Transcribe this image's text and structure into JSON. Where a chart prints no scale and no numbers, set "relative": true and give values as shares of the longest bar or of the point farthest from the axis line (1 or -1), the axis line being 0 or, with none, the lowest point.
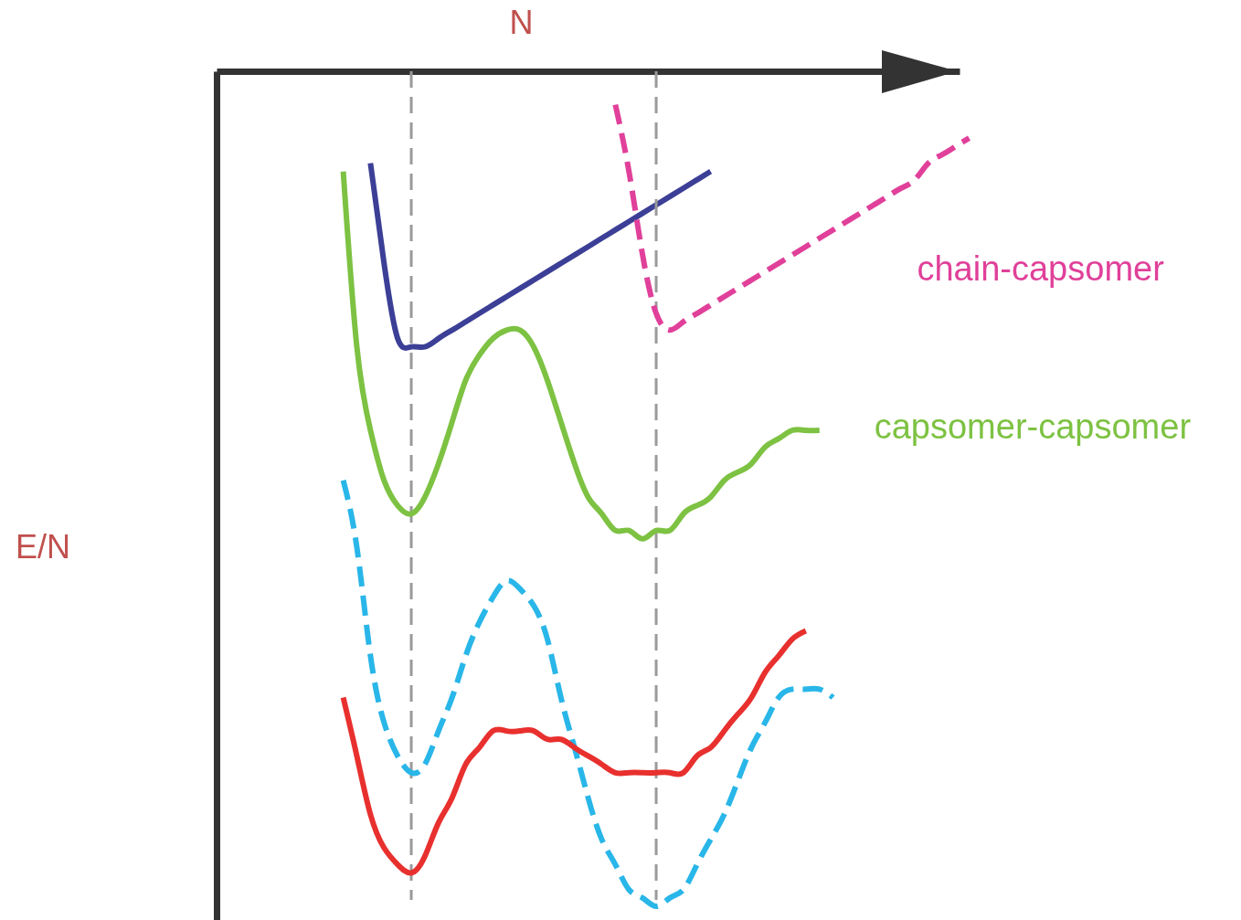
{
  "chart_data": {
    "type": "line",
    "relative": true,
    "xlabel": "N",
    "annotations": [
      "E/N"
    ],
    "grid": false,
    "marker": "none",
    "tick_labels": false,
    "categories": [
      null,
      null,
      null,
      null,
      null,
      null,
      null,
      null,
      null,
      null,
      null,
      null,
      null,
      null,
      null,
      null,
      null,
      null,
      null,
      null,
      null,
      null,
      null,
      null,
      null,
      null,
      null,
      null,
      null,
      null,
      null,
      null,
      null,
      null,
      null,
      null,
      null,
      null,
      null,
      null,
      null,
      null,
      null,
      null,
      null,
      null,
      null
    ],
    "series": [
      {
        "color": "#3c3f96",
        "line_style": "solid",
        "values": [
          null,
          null,
          -0.11,
          -0.23,
          -0.32,
          -0.33,
          -0.33,
          -0.32,
          -0.31,
          -0.3,
          -0.29,
          -0.28,
          -0.27,
          -0.26,
          -0.25,
          -0.24,
          -0.23,
          -0.22,
          -0.21,
          -0.2,
          -0.19,
          -0.18,
          -0.17,
          -0.16,
          -0.15,
          -0.14,
          -0.13,
          -0.12,
          null,
          null,
          null,
          null,
          null,
          null,
          null,
          null,
          null,
          null,
          null,
          null,
          null,
          null,
          null,
          null,
          null,
          null,
          null
        ]
      },
      {
        "name": "chain-capsomer",
        "color": "#e0409a",
        "line_style": "dashed",
        "values": [
          null,
          null,
          null,
          null,
          null,
          null,
          null,
          null,
          null,
          null,
          null,
          null,
          null,
          null,
          null,
          null,
          null,
          null,
          null,
          null,
          -0.04,
          -0.12,
          -0.22,
          -0.29,
          -0.31,
          -0.3,
          -0.29,
          -0.28,
          -0.27,
          -0.26,
          -0.25,
          -0.24,
          -0.23,
          -0.22,
          -0.21,
          -0.2,
          -0.19,
          -0.18,
          -0.17,
          -0.16,
          -0.15,
          -0.14,
          -0.13,
          -0.11,
          -0.1,
          -0.09,
          -0.08
        ]
      },
      {
        "name": "capsomer-capsomer",
        "color": "#7dc242",
        "line_style": "solid",
        "values": [
          -0.12,
          -0.33,
          -0.43,
          -0.49,
          -0.52,
          -0.53,
          -0.51,
          -0.47,
          -0.42,
          -0.37,
          -0.34,
          -0.32,
          -0.31,
          -0.31,
          -0.33,
          -0.37,
          -0.42,
          -0.47,
          -0.51,
          -0.53,
          -0.55,
          -0.55,
          -0.56,
          -0.55,
          -0.55,
          -0.53,
          -0.52,
          -0.51,
          -0.49,
          -0.48,
          -0.47,
          -0.45,
          -0.44,
          -0.43,
          -0.43,
          -0.43,
          null,
          null,
          null,
          null,
          null,
          null,
          null,
          null,
          null,
          null,
          null
        ]
      },
      {
        "color": "#29b6e8",
        "line_style": "dashed",
        "values": [
          -0.49,
          -0.57,
          -0.7,
          -0.78,
          -0.82,
          -0.84,
          -0.83,
          -0.79,
          -0.75,
          -0.7,
          -0.66,
          -0.63,
          -0.61,
          -0.62,
          -0.64,
          -0.68,
          -0.75,
          -0.81,
          -0.87,
          -0.92,
          -0.95,
          -0.98,
          -0.99,
          -1,
          -0.99,
          -0.98,
          -0.95,
          -0.92,
          -0.89,
          -0.85,
          -0.81,
          -0.78,
          -0.75,
          -0.74,
          -0.74,
          -0.74,
          -0.75,
          null,
          null,
          null,
          null,
          null,
          null,
          null,
          null,
          null,
          null
        ]
      },
      {
        "color": "#e8302e",
        "line_style": "solid",
        "values": [
          -0.75,
          -0.82,
          -0.89,
          -0.93,
          -0.95,
          -0.96,
          -0.94,
          -0.9,
          -0.87,
          -0.83,
          -0.81,
          -0.79,
          -0.79,
          -0.79,
          -0.79,
          -0.8,
          -0.8,
          -0.81,
          -0.82,
          -0.83,
          -0.84,
          -0.84,
          -0.84,
          -0.84,
          -0.84,
          -0.84,
          -0.82,
          -0.81,
          -0.79,
          -0.77,
          -0.75,
          -0.72,
          -0.7,
          -0.68,
          -0.67,
          null,
          null,
          null,
          null,
          null,
          null,
          null,
          null,
          null,
          null,
          null,
          null
        ]
      }
    ]
  }
}
